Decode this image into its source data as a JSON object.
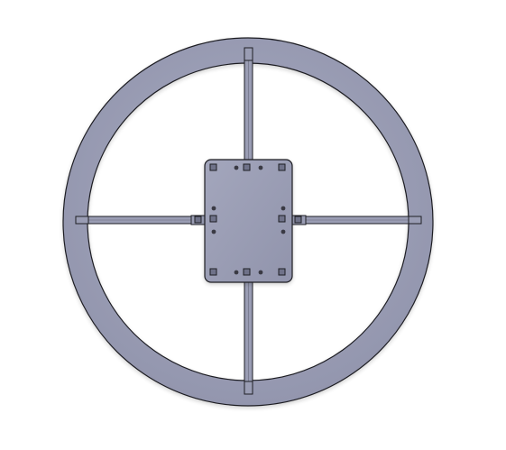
{
  "colors": {
    "background": "#ffffff",
    "part_fill": "#9a9db4",
    "part_fill_light": "#a7aac0",
    "part_fill_dark": "#8d90a8",
    "edge": "#1e1e24",
    "hole_fill": "#6f7289"
  },
  "diagram": {
    "type": "cad-model-front-view",
    "parts": [
      "outer-ring",
      "vertical-spoke",
      "horizontal-spoke",
      "center-plate"
    ],
    "plate_holes": {
      "square_count": 10,
      "round_count": 8
    }
  }
}
